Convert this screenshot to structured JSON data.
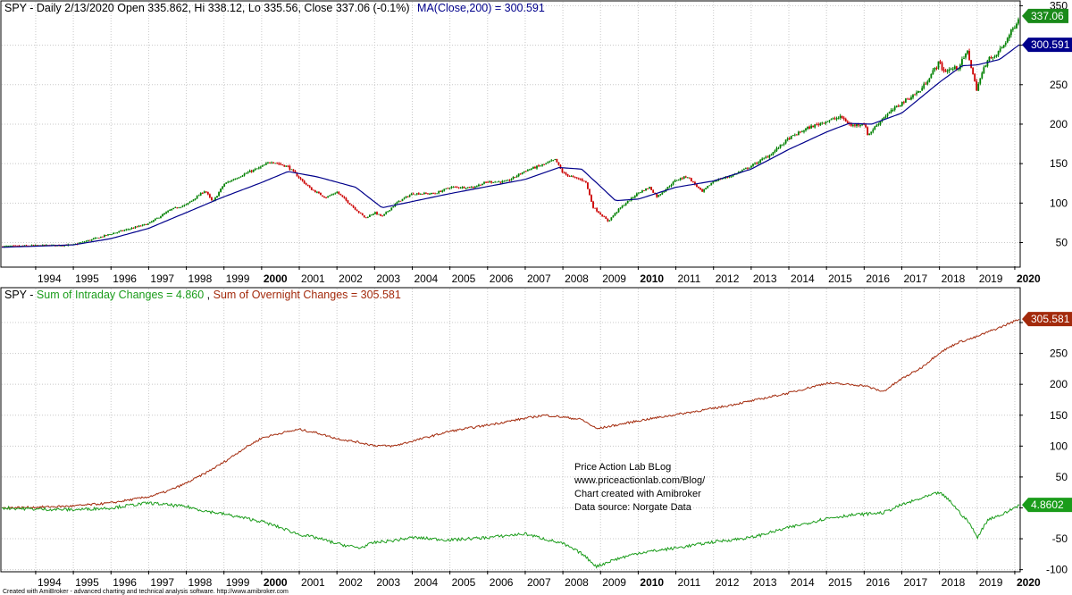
{
  "header": {
    "top_left": "SPY - Daily 2/13/2020 Open 335.862, Hi 338.12, Lo 335.56, Close 337.06 (-0.1%)",
    "top_ma": "MA(Close,200) = 300.591",
    "bottom_prefix": "SPY - ",
    "bottom_intraday": "Sum of Intraday Changes = 4.860",
    "bottom_sep": ", ",
    "bottom_overnight": "Sum of Overnight Changes = 305.581"
  },
  "watermark": {
    "line1": "Price Action Lab BLog",
    "line2": "www.priceactionlab.com/Blog/",
    "line3": "Chart created with Amibroker",
    "line4": "Data source: Norgate Data"
  },
  "footer": "Created with AmiBroker - advanced charting and technical analysis software. http://www.amibroker.com",
  "colors": {
    "price": "#008000",
    "price_down": "#cc0000",
    "ma": "#00008b",
    "intraday": "#1a9c1a",
    "overnight": "#a32a0c",
    "grid": "#c8c8c8"
  },
  "chart_data": [
    {
      "type": "candlestick",
      "title": "SPY - Daily 2/13/2020 Open 335.862, Hi 338.12, Lo 335.56, Close 337.06 (-0.1%)",
      "ylim": [
        20,
        355
      ],
      "yticks": [
        50,
        100,
        150,
        200,
        250,
        300,
        350
      ],
      "x_ticks": [
        "1994",
        "1995",
        "1996",
        "1997",
        "1998",
        "1999",
        "2000",
        "2001",
        "2002",
        "2003",
        "2004",
        "2005",
        "2006",
        "2007",
        "2008",
        "2009",
        "2010",
        "2011",
        "2012",
        "2013",
        "2014",
        "2015",
        "2016",
        "2017",
        "2018",
        "2019",
        "2020"
      ],
      "bold_ticks": [
        "2000",
        "2010",
        "2020"
      ],
      "last_values": {
        "close": "337.06",
        "ma": "300.591"
      },
      "series": [
        {
          "name": "SPY Close",
          "x": [
            1993.1,
            1994.0,
            1995.0,
            1996.0,
            1997.0,
            1997.6,
            1998.0,
            1998.5,
            1998.7,
            1999.0,
            1999.5,
            2000.0,
            2000.25,
            2000.7,
            2001.0,
            2001.3,
            2001.7,
            2002.0,
            2002.5,
            2002.75,
            2003.0,
            2003.2,
            2003.6,
            2004.0,
            2004.6,
            2005.0,
            2005.6,
            2006.0,
            2006.5,
            2007.0,
            2007.5,
            2007.8,
            2008.0,
            2008.3,
            2008.6,
            2008.8,
            2009.0,
            2009.2,
            2009.5,
            2010.0,
            2010.3,
            2010.5,
            2011.0,
            2011.3,
            2011.7,
            2012.0,
            2012.5,
            2013.0,
            2013.5,
            2014.0,
            2014.5,
            2015.0,
            2015.4,
            2015.65,
            2016.0,
            2016.1,
            2016.5,
            2017.0,
            2017.5,
            2018.0,
            2018.1,
            2018.5,
            2018.75,
            2018.98,
            2019.3,
            2019.4,
            2019.7,
            2020.0,
            2020.12
          ],
          "values": [
            45,
            46,
            47,
            61,
            74,
            92,
            98,
            116,
            101,
            124,
            136,
            146,
            153,
            146,
            132,
            118,
            107,
            114,
            92,
            81,
            88,
            83,
            101,
            112,
            112,
            120,
            120,
            127,
            127,
            141,
            149,
            155,
            138,
            132,
            128,
            95,
            86,
            77,
            93,
            113,
            120,
            108,
            129,
            134,
            114,
            128,
            135,
            147,
            161,
            182,
            195,
            204,
            209,
            198,
            201,
            186,
            208,
            227,
            243,
            279,
            267,
            272,
            292,
            244,
            286,
            281,
            300,
            325,
            337
          ]
        },
        {
          "name": "MA(Close,200)",
          "x": [
            1993.1,
            1995.0,
            1996.0,
            1997.0,
            1998.0,
            1999.0,
            2000.0,
            2000.7,
            2001.5,
            2002.5,
            2003.2,
            2004.0,
            2005.0,
            2006.0,
            2007.0,
            2007.9,
            2008.5,
            2009.0,
            2009.4,
            2010.0,
            2011.0,
            2012.0,
            2013.0,
            2014.0,
            2015.0,
            2015.6,
            2016.2,
            2017.0,
            2018.0,
            2018.6,
            2019.0,
            2019.6,
            2020.12
          ],
          "values": [
            44,
            47,
            55,
            68,
            88,
            108,
            126,
            140,
            133,
            120,
            94,
            102,
            112,
            121,
            130,
            145,
            143,
            121,
            103,
            105,
            120,
            128,
            143,
            168,
            190,
            201,
            200,
            214,
            253,
            274,
            275,
            282,
            300.6
          ]
        }
      ]
    },
    {
      "type": "line",
      "title": "SPY - Sum of Intraday Changes = 4.860, Sum of Overnight Changes = 305.581",
      "ylim": [
        -102,
        355
      ],
      "yticks": [
        -100,
        -50,
        0,
        50,
        100,
        150,
        200,
        250,
        300
      ],
      "x_ticks": [
        "1994",
        "1995",
        "1996",
        "1997",
        "1998",
        "1999",
        "2000",
        "2001",
        "2002",
        "2003",
        "2004",
        "2005",
        "2006",
        "2007",
        "2008",
        "2009",
        "2010",
        "2011",
        "2012",
        "2013",
        "2014",
        "2015",
        "2016",
        "2017",
        "2018",
        "2019",
        "2020"
      ],
      "bold_ticks": [
        "2000",
        "2010",
        "2020"
      ],
      "last_values": {
        "overnight": "305.581",
        "intraday": "4.8602"
      },
      "series": [
        {
          "name": "Sum of Overnight Changes",
          "x": [
            1993.1,
            1994.0,
            1995.0,
            1996.0,
            1997.0,
            1997.5,
            1998.0,
            1998.5,
            1999.0,
            1999.5,
            2000.0,
            2000.5,
            2001.0,
            2001.5,
            2002.0,
            2002.5,
            2003.0,
            2003.5,
            2004.0,
            2005.0,
            2006.0,
            2007.0,
            2007.5,
            2008.0,
            2008.5,
            2008.9,
            2009.5,
            2010.0,
            2011.0,
            2012.0,
            2013.0,
            2014.0,
            2014.5,
            2015.0,
            2015.5,
            2016.0,
            2016.5,
            2017.0,
            2017.5,
            2018.0,
            2018.5,
            2018.95,
            2019.3,
            2019.6,
            2020.12
          ],
          "values": [
            0,
            1,
            3,
            8,
            18,
            27,
            40,
            56,
            74,
            95,
            113,
            121,
            127,
            121,
            112,
            107,
            101,
            100,
            108,
            124,
            134,
            145,
            150,
            147,
            143,
            128,
            135,
            141,
            151,
            161,
            173,
            186,
            194,
            202,
            200,
            198,
            188,
            209,
            226,
            251,
            268,
            276,
            285,
            292,
            305.6
          ]
        },
        {
          "name": "Sum of Intraday Changes",
          "x": [
            1993.1,
            1994.0,
            1995.0,
            1996.0,
            1997.0,
            1998.0,
            1998.5,
            1999.0,
            2000.0,
            2000.5,
            2001.0,
            2001.5,
            2002.0,
            2002.6,
            2003.0,
            2003.5,
            2004.0,
            2005.0,
            2006.0,
            2007.0,
            2007.5,
            2008.0,
            2008.5,
            2008.9,
            2009.3,
            2010.0,
            2011.0,
            2012.0,
            2013.0,
            2014.0,
            2015.0,
            2015.6,
            2016.0,
            2016.5,
            2017.0,
            2017.5,
            2018.0,
            2018.3,
            2018.5,
            2018.8,
            2019.0,
            2019.3,
            2019.7,
            2020.12
          ],
          "values": [
            0,
            -2,
            -3,
            0,
            8,
            2,
            -5,
            -10,
            -22,
            -32,
            -43,
            -49,
            -58,
            -65,
            -56,
            -53,
            -48,
            -52,
            -48,
            -42,
            -50,
            -58,
            -74,
            -95,
            -85,
            -73,
            -65,
            -55,
            -48,
            -32,
            -17,
            -12,
            -10,
            -8,
            5,
            15,
            25,
            10,
            -5,
            -25,
            -48,
            -18,
            -10,
            4.9
          ]
        }
      ]
    }
  ]
}
